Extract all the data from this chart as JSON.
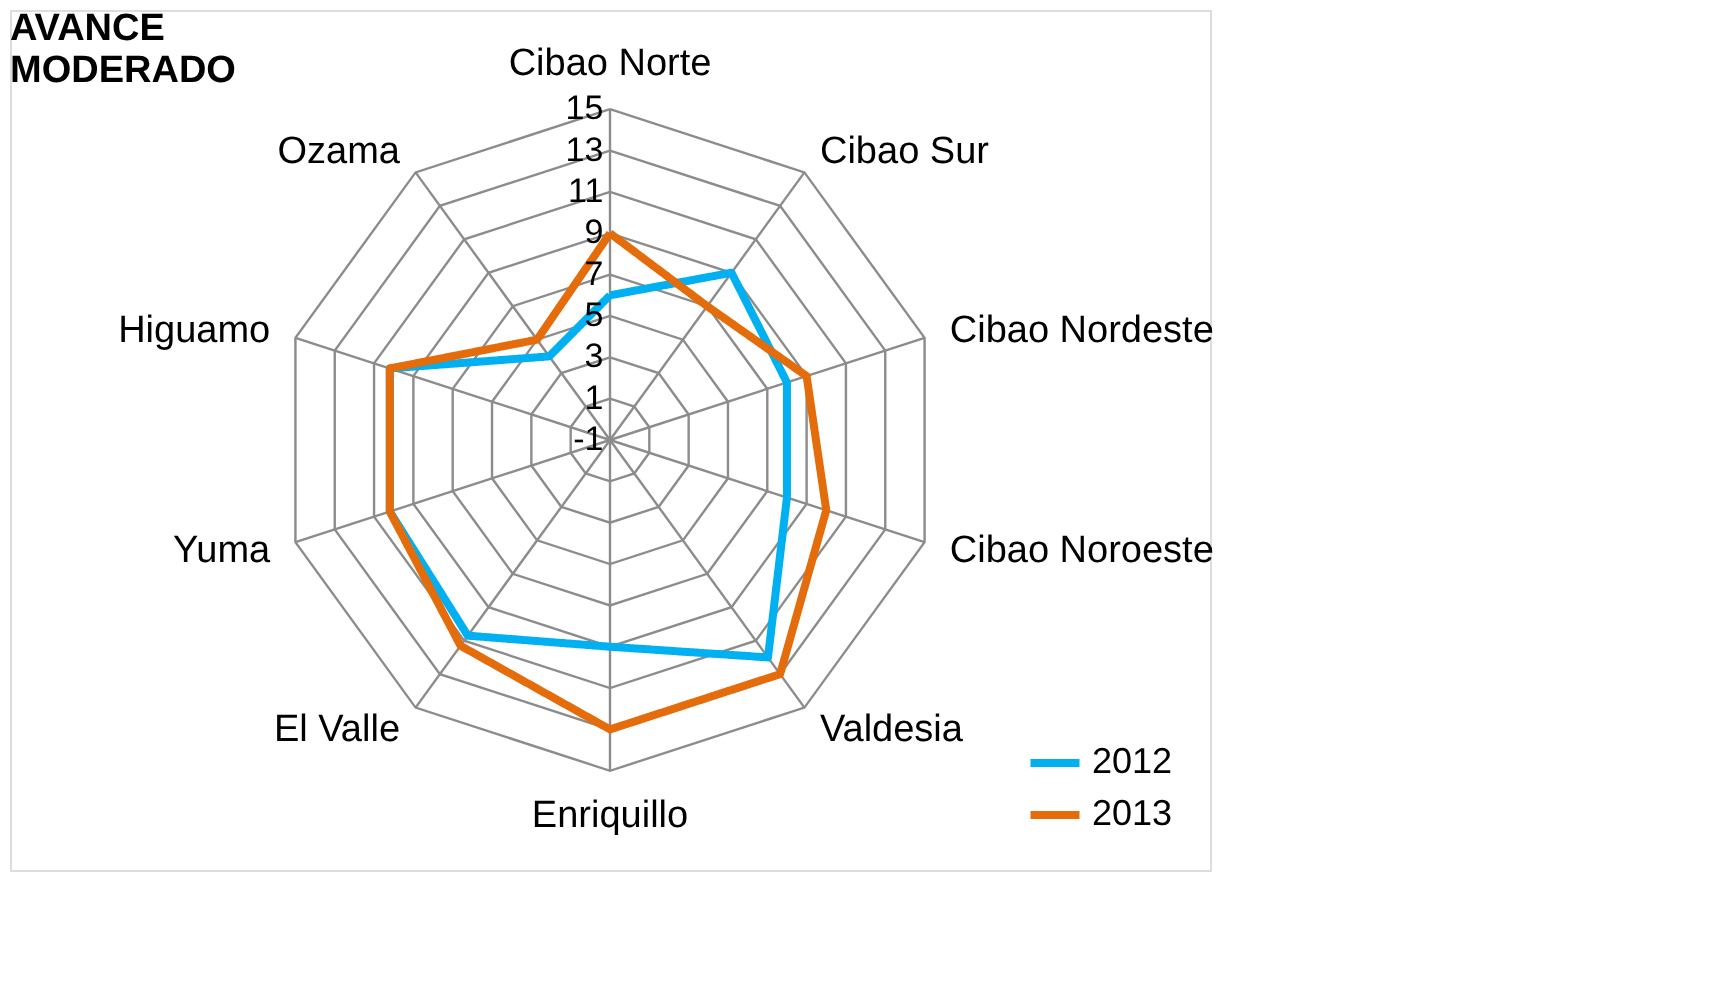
{
  "chart_data": {
    "type": "radar",
    "title": "AVANCE MODERADO",
    "categories": [
      "Cibao Norte",
      "Cibao Sur",
      "Cibao Nordeste",
      "Cibao Noroeste",
      "Valdesia",
      "Enriquillo",
      "El Valle",
      "Yuma",
      "Higuamo",
      "Ozama"
    ],
    "series": [
      {
        "name": "2012",
        "color": "#00b0f0",
        "values": [
          6,
          9,
          8,
          8,
          12,
          9,
          10.7,
          10.2,
          10.2,
          4
        ]
      },
      {
        "name": "2013",
        "color": "#e46c0a",
        "values": [
          9,
          7,
          9,
          10,
          13,
          13,
          11.3,
          10.2,
          10.2,
          5
        ]
      }
    ],
    "ylim": [
      -1,
      15
    ],
    "yticks": [
      -1,
      1,
      3,
      5,
      7,
      9,
      11,
      13,
      15
    ],
    "grid": true,
    "legend": "bottom right",
    "marker": "none",
    "line_style": "solid"
  }
}
